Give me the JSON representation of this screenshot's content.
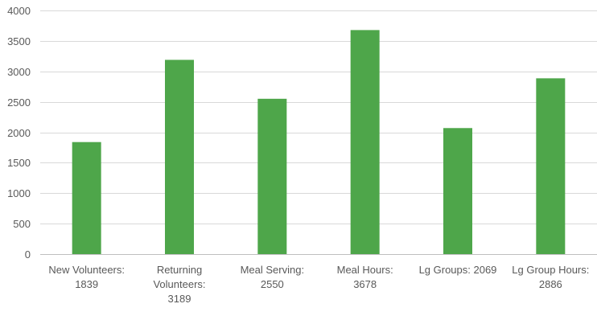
{
  "chart_data": {
    "type": "bar",
    "title": "",
    "xlabel": "",
    "ylabel": "",
    "categories": [
      [
        "New Volunteers:",
        "1839"
      ],
      [
        "Returning",
        "Volunteers:",
        "3189"
      ],
      [
        "Meal Serving:",
        "2550"
      ],
      [
        "Meal Hours:",
        "3678"
      ],
      [
        "Lg Groups: 2069"
      ],
      [
        "Lg Group Hours:",
        "2886"
      ]
    ],
    "values": [
      1839,
      3189,
      2550,
      3678,
      2069,
      2886
    ],
    "ylim": [
      0,
      4000
    ],
    "yticks": [
      0,
      500,
      1000,
      1500,
      2000,
      2500,
      3000,
      3500,
      4000
    ],
    "grid": true,
    "legend": "none",
    "bar_color": "#4ea64a",
    "grid_color": "#d9d9d9",
    "text_color": "#595959"
  }
}
